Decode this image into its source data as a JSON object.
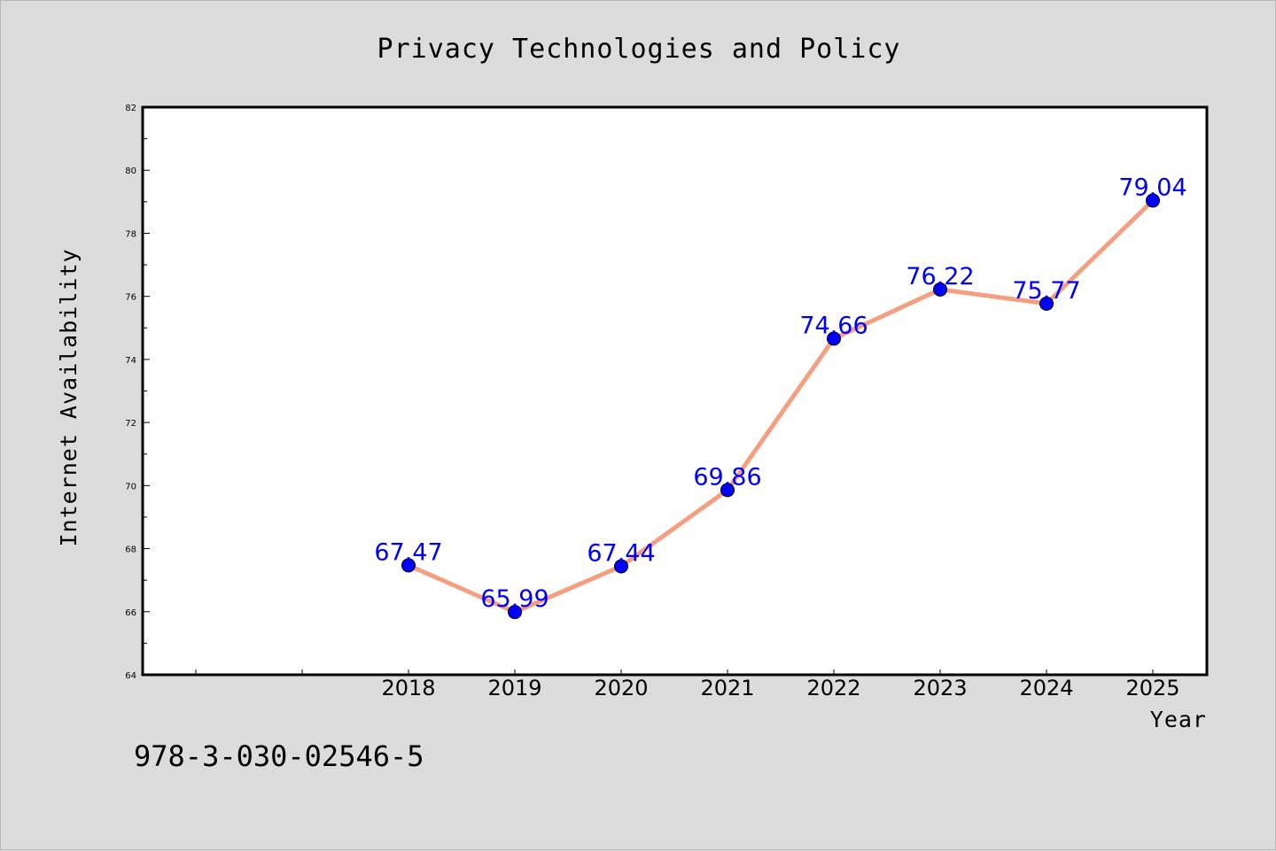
{
  "isbn": "978-3-030-02546-5",
  "colors": {
    "background": "#dcdcdc",
    "plot_background": "#ffffff",
    "line": "#f4a080",
    "marker": "#0000ff",
    "data_label": "#0000ff"
  },
  "chart_data": {
    "type": "line",
    "title": "Privacy Technologies and Policy",
    "xlabel": "Year",
    "ylabel": "Internet Availability",
    "x": [
      "2018",
      "2019",
      "2020",
      "2021",
      "2022",
      "2023",
      "2024",
      "2025"
    ],
    "x_axis_slots": 10,
    "x_first_data_slot": 2,
    "series": [
      {
        "values": [
          67.47,
          65.99,
          67.44,
          69.86,
          74.66,
          76.22,
          75.77,
          79.04
        ],
        "labels": [
          "67.47",
          "65.99",
          "67.44",
          "69.86",
          "74.66",
          "76.22",
          "75.77",
          "79.04"
        ]
      }
    ],
    "ylim": [
      64,
      82
    ],
    "yticks": [
      64,
      66,
      68,
      70,
      72,
      74,
      76,
      78,
      80,
      82
    ],
    "grid": false,
    "legend": "none"
  }
}
